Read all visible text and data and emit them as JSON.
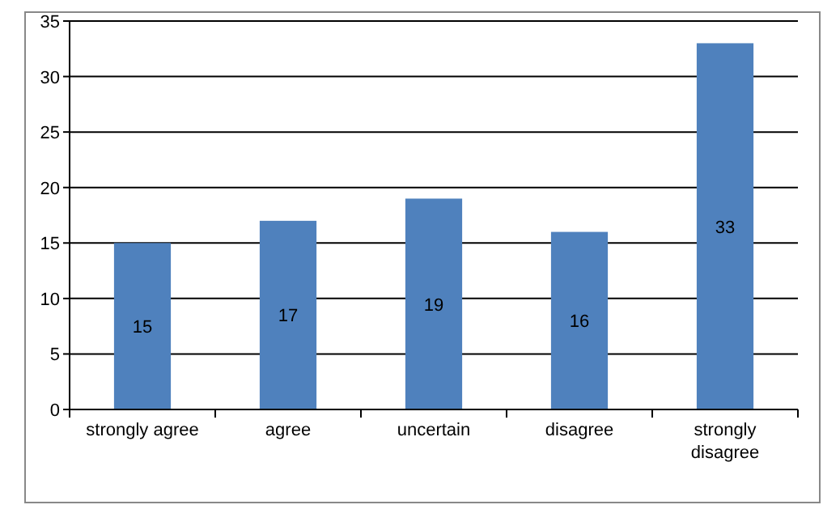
{
  "chart_data": {
    "type": "bar",
    "categories": [
      "strongly agree",
      "agree",
      "uncertain",
      "disagree",
      "strongly disagree"
    ],
    "values": [
      15,
      17,
      19,
      16,
      33
    ],
    "color": "#4f81bd",
    "ylim": [
      0,
      35
    ],
    "yticks": [
      0,
      5,
      10,
      15,
      20,
      25,
      30,
      35
    ],
    "grid": "y",
    "data_labels": true
  }
}
